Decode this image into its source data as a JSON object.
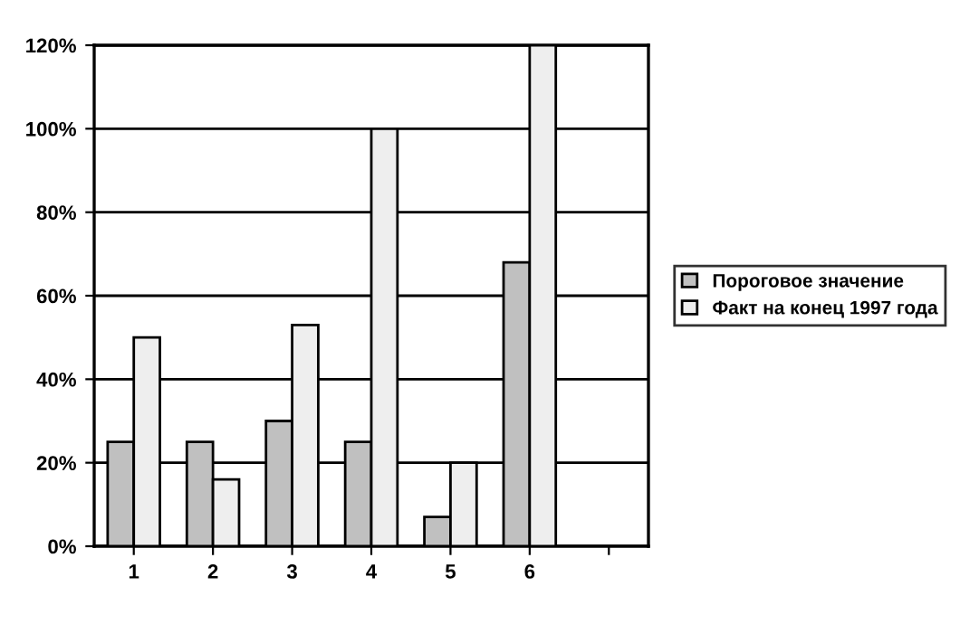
{
  "chart_data": {
    "type": "bar",
    "categories": [
      "1",
      "2",
      "3",
      "4",
      "5",
      "6",
      null
    ],
    "series": [
      {
        "name": "Пороговое значение",
        "color": "#c0c0c0",
        "values": [
          25,
          25,
          30,
          25,
          7,
          68,
          null
        ]
      },
      {
        "name": "Факт на конец 1997 года",
        "color": "#eeeeee",
        "values": [
          50,
          16,
          53,
          100,
          20,
          120,
          null
        ]
      }
    ],
    "ylim": [
      0,
      120
    ],
    "yticks": [
      {
        "value": 0,
        "label": "0%"
      },
      {
        "value": 20,
        "label": "20%"
      },
      {
        "value": 40,
        "label": "40%"
      },
      {
        "value": 60,
        "label": "60%"
      },
      {
        "value": 80,
        "label": "80%"
      },
      {
        "value": 100,
        "label": "100%"
      },
      {
        "value": 120,
        "label": "120%"
      }
    ],
    "grid": "y",
    "legend": "right"
  }
}
